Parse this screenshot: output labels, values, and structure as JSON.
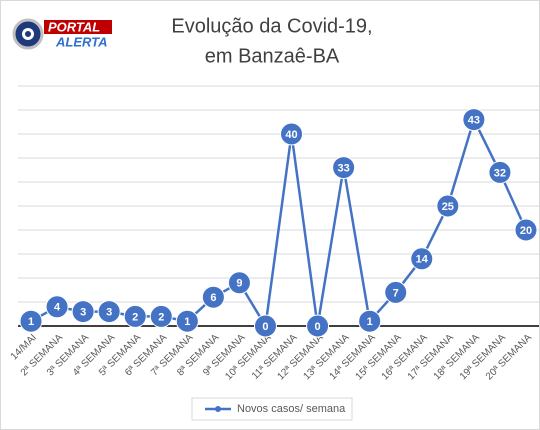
{
  "chart_data": {
    "type": "line",
    "logo": [
      "PORTAL",
      "ALERTA"
    ],
    "title": [
      "Evolução da Covid-19,",
      "em Banzaê-BA"
    ],
    "categories": [
      "14/MAI",
      "2ª SEMANA",
      "3ª SEMANA",
      "4ª SEMANA",
      "5ª SEMANA",
      "6ª SEMANA",
      "7ª SEMANA",
      "8ª SEMANA",
      "9ª SEMANA",
      "10ª SEMANA",
      "11ª SEMANA",
      "12ª SEMANA",
      "13ª SEMANA",
      "14ª SEMANA",
      "15ª SEMANA",
      "16ª SEMANA",
      "17ª SEMANA",
      "18ª SEMANA",
      "19ª SEMANA",
      "20ª SEMANA"
    ],
    "series": [
      {
        "name": "Novos casos/ semana",
        "color": "#4472c4",
        "values": [
          1,
          4,
          3,
          3,
          2,
          2,
          1,
          6,
          9,
          0,
          40,
          0,
          33,
          1,
          7,
          14,
          25,
          43,
          32,
          20
        ]
      }
    ],
    "ylim": [
      0,
      50
    ],
    "yticks": [
      0,
      5,
      10,
      15,
      20,
      25,
      30,
      35,
      40,
      45,
      50
    ],
    "grid": true,
    "legend": "bottom"
  }
}
